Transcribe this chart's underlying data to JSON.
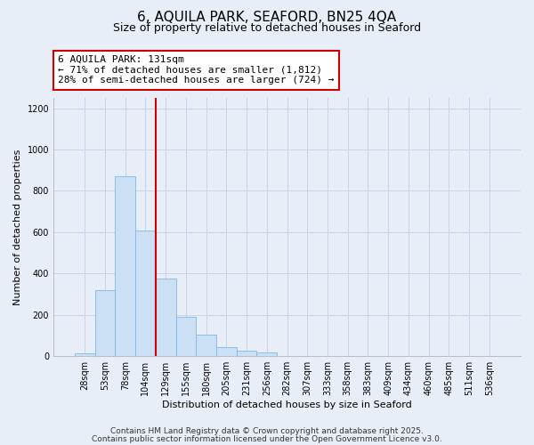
{
  "title": "6, AQUILA PARK, SEAFORD, BN25 4QA",
  "subtitle": "Size of property relative to detached houses in Seaford",
  "xlabel": "Distribution of detached houses by size in Seaford",
  "ylabel": "Number of detached properties",
  "bin_labels": [
    "28sqm",
    "53sqm",
    "78sqm",
    "104sqm",
    "129sqm",
    "155sqm",
    "180sqm",
    "205sqm",
    "231sqm",
    "256sqm",
    "282sqm",
    "307sqm",
    "333sqm",
    "358sqm",
    "383sqm",
    "409sqm",
    "434sqm",
    "460sqm",
    "485sqm",
    "511sqm",
    "536sqm"
  ],
  "bar_values": [
    15,
    320,
    870,
    610,
    375,
    190,
    105,
    45,
    25,
    18,
    0,
    0,
    0,
    0,
    0,
    0,
    0,
    0,
    0,
    0,
    0
  ],
  "bar_color": "#cce0f5",
  "bar_edge_color": "#7db8e8",
  "vline_x": 4,
  "vline_color": "#cc0000",
  "annotation_text": "6 AQUILA PARK: 131sqm\n← 71% of detached houses are smaller (1,812)\n28% of semi-detached houses are larger (724) →",
  "annotation_box_color": "white",
  "annotation_box_edge": "#cc0000",
  "ylim": [
    0,
    1250
  ],
  "yticks": [
    0,
    200,
    400,
    600,
    800,
    1000,
    1200
  ],
  "footer1": "Contains HM Land Registry data © Crown copyright and database right 2025.",
  "footer2": "Contains public sector information licensed under the Open Government Licence v3.0.",
  "background_color": "#e8eef7",
  "grid_color": "#c8d4e8",
  "title_fontsize": 11,
  "subtitle_fontsize": 9,
  "label_fontsize": 8,
  "tick_fontsize": 7,
  "annotation_fontsize": 8,
  "footer_fontsize": 6.5
}
